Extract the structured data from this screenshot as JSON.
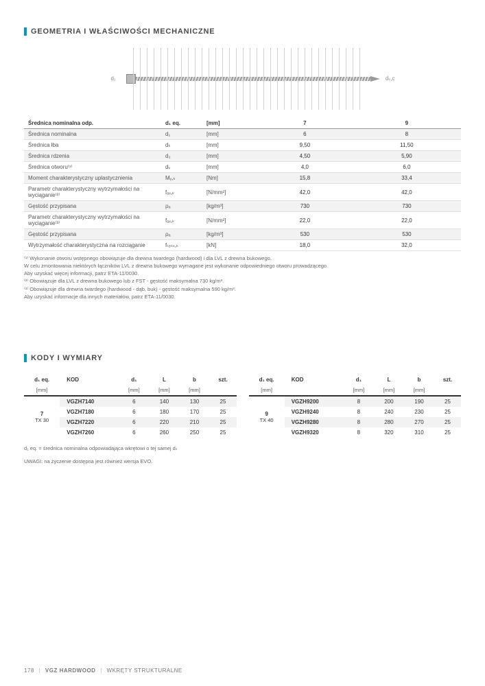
{
  "section1": {
    "title": "GEOMETRIA I WŁAŚCIWOŚCI MECHANICZNE",
    "diagram": {
      "label_d1": "d₁",
      "label_ds": "dₛ,c"
    },
    "specTable": {
      "headers": {
        "name": "",
        "sym": "d₁ eq.",
        "unit": "[mm]",
        "v1": "7",
        "v2": "9"
      },
      "rows": [
        {
          "name": "Średnica nominalna odp.",
          "sym": "d₁ eq.",
          "unit": "[mm]",
          "v1": "7",
          "v2": "9",
          "head": true
        },
        {
          "name": "Średnica nominalna",
          "sym": "d₁",
          "unit": "[mm]",
          "v1": "6",
          "v2": "8"
        },
        {
          "name": "Średnica łba",
          "sym": "dₖ",
          "unit": "[mm]",
          "v1": "9,50",
          "v2": "11,50"
        },
        {
          "name": "Średnica rdzenia",
          "sym": "d₂",
          "unit": "[mm]",
          "v1": "4,50",
          "v2": "5,90"
        },
        {
          "name": "Średnica otworu⁽¹⁾",
          "sym": "dᵥ",
          "unit": "[mm]",
          "v1": "4,0",
          "v2": "6,0"
        },
        {
          "name": "Moment charakterystyczny uplastycznienia",
          "sym": "Mᵧ,ₖ",
          "unit": "[Nm]",
          "v1": "15,8",
          "v2": "33,4"
        },
        {
          "name": "Parametr charakterystyczny wytrzymałości na wyciąganie⁽²⁾",
          "sym": "fₐₓ,ₖ",
          "unit": "[N/mm²]",
          "v1": "42,0",
          "v2": "42,0"
        },
        {
          "name": "Gęstość przypisana",
          "sym": "ρₐ",
          "unit": "[kg/m³]",
          "v1": "730",
          "v2": "730"
        },
        {
          "name": "Parametr charakterystyczny wytrzymałości na wyciąganie⁽³⁾",
          "sym": "fₐₓ,ₖ",
          "unit": "[N/mm²]",
          "v1": "22,0",
          "v2": "22,0"
        },
        {
          "name": "Gęstość przypisana",
          "sym": "ρₐ",
          "unit": "[kg/m³]",
          "v1": "530",
          "v2": "530"
        },
        {
          "name": "Wytrzymałość charakterystyczna na rozciąganie",
          "sym": "fₜₑₙₛ,ₖ",
          "unit": "[kN]",
          "v1": "18,0",
          "v2": "32,0"
        }
      ]
    },
    "footnotes": [
      "⁽¹⁾ Wykonanie otworu wstępnego obowiązuje dla drewna twardego (hardwood) i dla LVL z drewna bukowego.",
      "    W celu zmontowania niektórych łączników LVL z drewna bukowego wymagane jest wykonanie odpowiedniego otworu prowadzącego.",
      "    Aby uzyskać więcej informacji, patrz ETA-11/0030.",
      "⁽²⁾ Obowiązuje dla LVL z drewna bukowego lub z FST - gęstość maksymalna 730 kg/m³.",
      "⁽³⁾ Obowiązuje dla drewna twardego (hardwood - dąb, buk) - gęstość maksymalna 590 kg/m³.",
      "Aby uzyskać informacje dla innych materiałów, patrz ETA-11/0030."
    ]
  },
  "section2": {
    "title": "KODY I WYMIARY",
    "cols": {
      "c1": "d₁ eq.",
      "c2": "KOD",
      "c3": "d₁",
      "c4": "L",
      "c5": "b",
      "c6": "szt."
    },
    "units": {
      "c1": "[mm]",
      "c2": "",
      "c3": "[mm]",
      "c4": "[mm]",
      "c5": "[mm]",
      "c6": ""
    },
    "left": {
      "group": "7",
      "tx": "TX 30",
      "rows": [
        {
          "kod": "VGZH7140",
          "d1": "6",
          "L": "140",
          "b": "130",
          "szt": "25"
        },
        {
          "kod": "VGZH7180",
          "d1": "6",
          "L": "180",
          "b": "170",
          "szt": "25"
        },
        {
          "kod": "VGZH7220",
          "d1": "6",
          "L": "220",
          "b": "210",
          "szt": "25"
        },
        {
          "kod": "VGZH7260",
          "d1": "6",
          "L": "260",
          "b": "250",
          "szt": "25"
        }
      ]
    },
    "right": {
      "group": "9",
      "tx": "TX 40",
      "rows": [
        {
          "kod": "VGZH9200",
          "d1": "8",
          "L": "200",
          "b": "190",
          "szt": "25"
        },
        {
          "kod": "VGZH9240",
          "d1": "8",
          "L": "240",
          "b": "230",
          "szt": "25"
        },
        {
          "kod": "VGZH9280",
          "d1": "8",
          "L": "280",
          "b": "270",
          "szt": "25"
        },
        {
          "kod": "VGZH9320",
          "d1": "8",
          "L": "320",
          "b": "310",
          "szt": "25"
        }
      ]
    },
    "notes": [
      "d₁ eq. = średnica nominalna odpowiadająca wkrętowi o tej samej dₛ",
      "UWAGI: na życzenie dostępna jest również wersja EVO."
    ]
  },
  "footer": {
    "page": "178",
    "prod": "VGZ HARDWOOD",
    "cat": "WKRĘTY STRUKTURALNE"
  }
}
